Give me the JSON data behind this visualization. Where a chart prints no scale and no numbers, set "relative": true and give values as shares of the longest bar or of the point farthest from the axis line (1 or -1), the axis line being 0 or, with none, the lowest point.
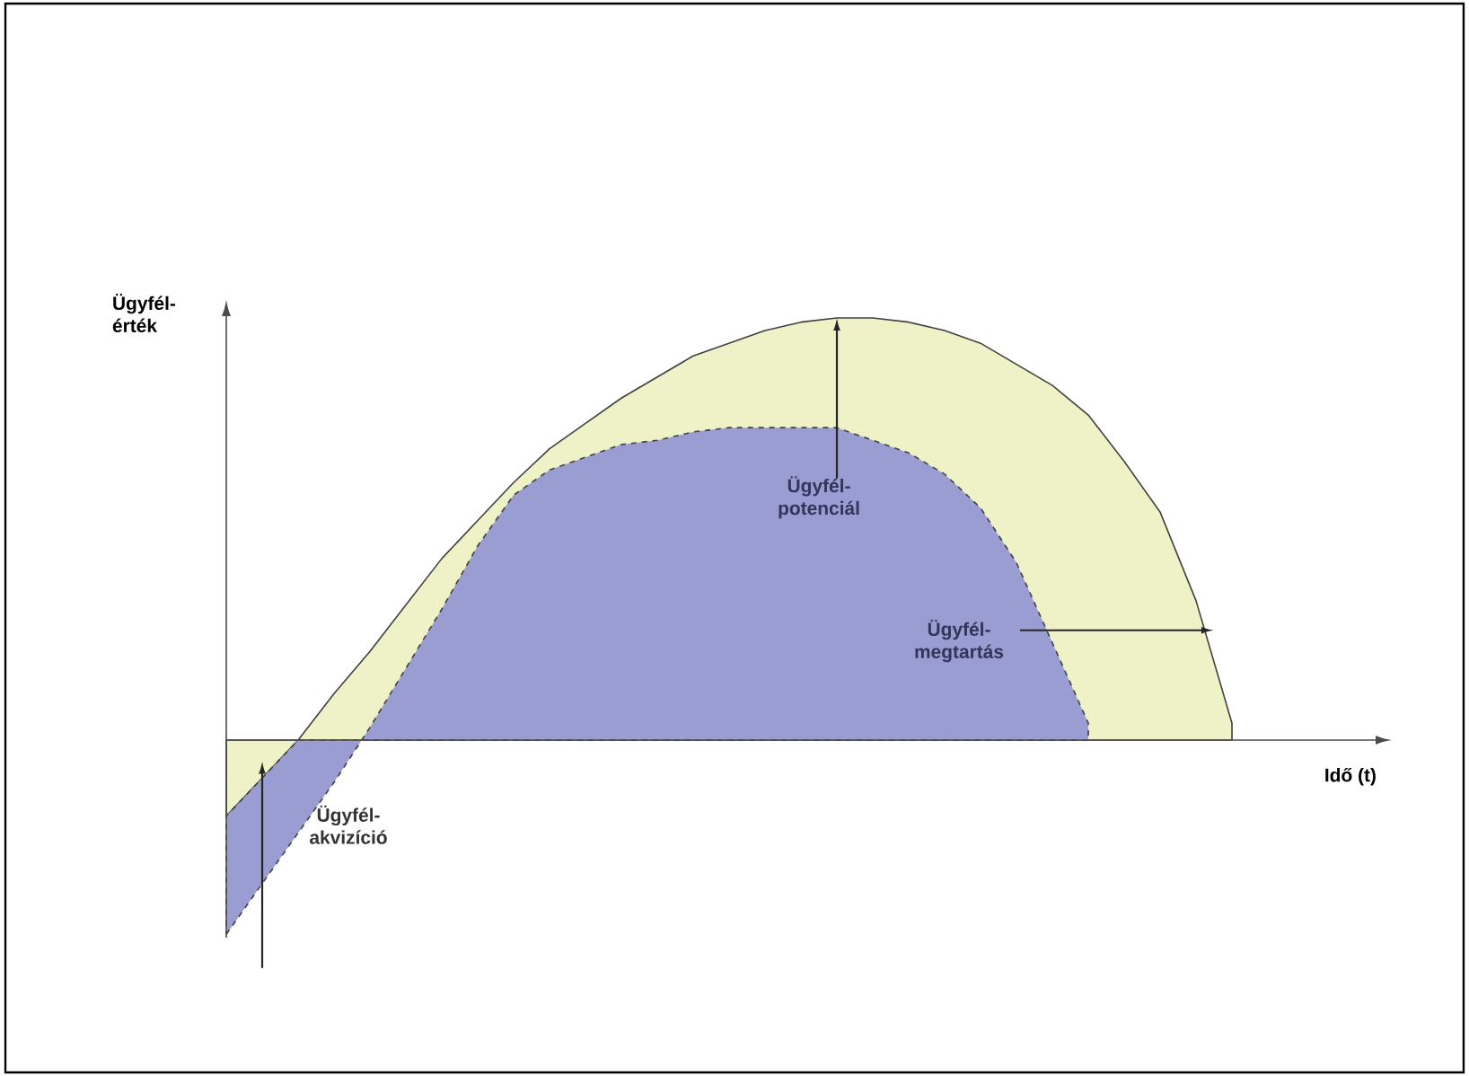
{
  "chart_data": {
    "type": "area",
    "relative": true,
    "xlabel": "Idő (t)",
    "ylabel": "Ügyfél-érték",
    "categories": [
      null,
      null,
      null,
      null,
      null,
      null,
      null,
      null,
      null,
      null,
      null,
      null,
      null,
      null,
      null,
      null,
      null,
      null,
      null,
      null,
      null,
      null,
      null,
      null,
      null,
      null,
      null,
      null,
      null
    ],
    "series": [
      {
        "color": "#eef2c6",
        "line_style": "solid",
        "values": [
          -0.18,
          -0.09,
          0.0,
          0.11,
          0.21,
          0.32,
          0.43,
          0.52,
          0.61,
          0.69,
          0.75,
          0.81,
          0.86,
          0.91,
          0.94,
          0.97,
          0.99,
          1.0,
          1.0,
          0.99,
          0.97,
          0.94,
          0.89,
          0.84,
          0.77,
          0.66,
          0.54,
          0.33,
          0.04
        ]
      },
      {
        "color": "#9a9dd2",
        "line_style": "dashed",
        "values": [
          -0.46,
          -0.34,
          -0.22,
          -0.1,
          0.03,
          0.17,
          0.31,
          0.46,
          0.58,
          0.64,
          0.67,
          0.7,
          0.71,
          0.73,
          0.74,
          0.74,
          0.74,
          0.74,
          0.71,
          0.68,
          0.63,
          0.55,
          0.42,
          0.23,
          0.04,
          null,
          null,
          null,
          null
        ]
      }
    ],
    "annotations": [
      "Ügyfél-potenciál",
      "Ügyfél-megtartás",
      "Ügyfél-akvizíció"
    ]
  }
}
